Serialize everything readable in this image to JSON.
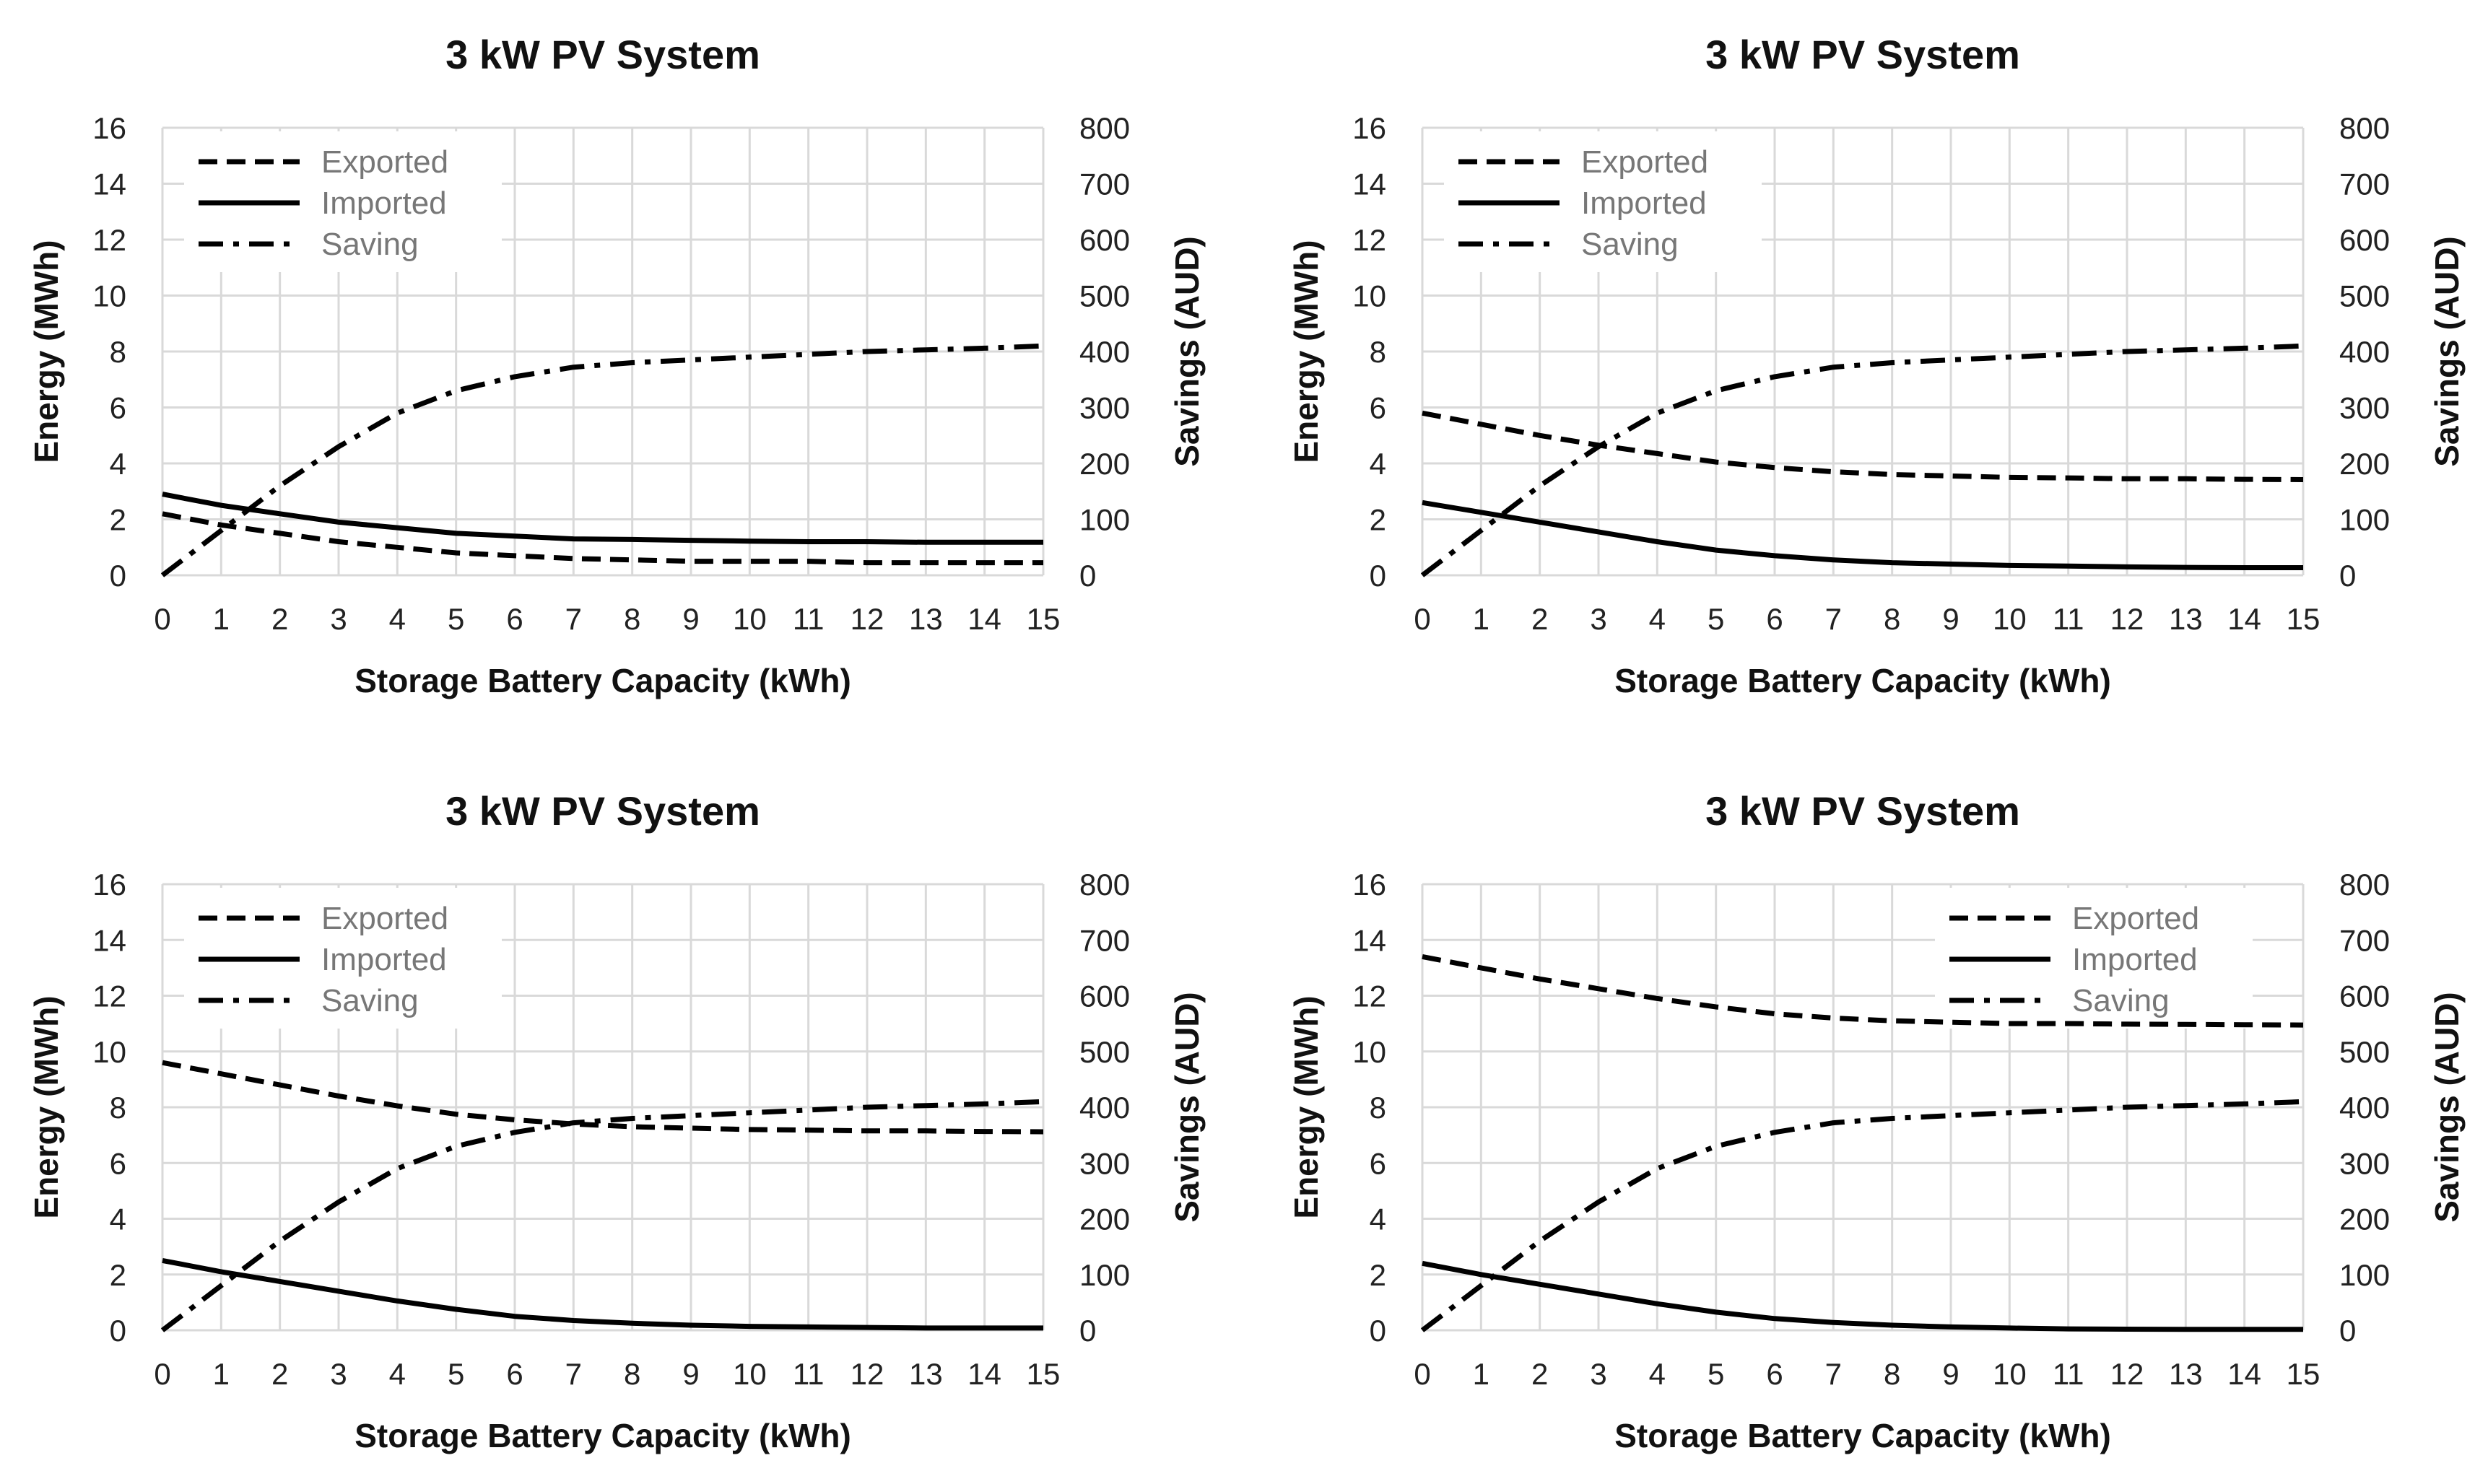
{
  "figure": {
    "description_free": true
  },
  "chart_data": [
    {
      "type": "line",
      "title": "3 kW PV System",
      "xlabel": "Storage Battery Capacity (kWh)",
      "ylabel": "Energy (MWh)",
      "y2label": "Savings (AUD)",
      "xlim": [
        0,
        15
      ],
      "ylim": [
        0,
        16
      ],
      "y2lim": [
        0,
        800
      ],
      "x_ticks": [
        "0",
        "1",
        "2",
        "3",
        "4",
        "5",
        "6",
        "7",
        "8",
        "9",
        "10",
        "11",
        "12",
        "13",
        "14",
        "15"
      ],
      "y_ticks": [
        "0",
        "2",
        "4",
        "6",
        "8",
        "10",
        "12",
        "14",
        "16"
      ],
      "y2_ticks": [
        "0",
        "100",
        "200",
        "300",
        "400",
        "500",
        "600",
        "700",
        "800"
      ],
      "grid": true,
      "legend_position": "top-left",
      "x": [
        0,
        1,
        2,
        3,
        4,
        5,
        6,
        7,
        8,
        9,
        10,
        11,
        12,
        13,
        14,
        15
      ],
      "series": [
        {
          "name": "Exported",
          "axis": "left",
          "style": "dashed",
          "values": [
            2.2,
            1.8,
            1.5,
            1.2,
            1.0,
            0.8,
            0.7,
            0.6,
            0.55,
            0.5,
            0.5,
            0.5,
            0.45,
            0.45,
            0.45,
            0.45
          ]
        },
        {
          "name": "Imported",
          "axis": "left",
          "style": "solid",
          "values": [
            2.9,
            2.5,
            2.2,
            1.9,
            1.7,
            1.5,
            1.4,
            1.3,
            1.28,
            1.25,
            1.22,
            1.2,
            1.2,
            1.18,
            1.18,
            1.18
          ]
        },
        {
          "name": "Saving",
          "axis": "right",
          "style": "dashdot",
          "values": [
            0,
            80,
            160,
            230,
            290,
            330,
            355,
            372,
            380,
            385,
            390,
            395,
            400,
            403,
            406,
            410
          ]
        }
      ]
    },
    {
      "type": "line",
      "title": "3 kW PV System",
      "xlabel": "Storage Battery Capacity (kWh)",
      "ylabel": "Energy (MWh)",
      "y2label": "Savings (AUD)",
      "xlim": [
        0,
        15
      ],
      "ylim": [
        0,
        16
      ],
      "y2lim": [
        0,
        800
      ],
      "x_ticks": [
        "0",
        "1",
        "2",
        "3",
        "4",
        "5",
        "6",
        "7",
        "8",
        "9",
        "10",
        "11",
        "12",
        "13",
        "14",
        "15"
      ],
      "y_ticks": [
        "0",
        "2",
        "4",
        "6",
        "8",
        "10",
        "12",
        "14",
        "16"
      ],
      "y2_ticks": [
        "0",
        "100",
        "200",
        "300",
        "400",
        "500",
        "600",
        "700",
        "800"
      ],
      "grid": true,
      "legend_position": "top-left",
      "x": [
        0,
        1,
        2,
        3,
        4,
        5,
        6,
        7,
        8,
        9,
        10,
        11,
        12,
        13,
        14,
        15
      ],
      "series": [
        {
          "name": "Exported",
          "axis": "left",
          "style": "dashed",
          "values": [
            5.8,
            5.4,
            5.0,
            4.65,
            4.35,
            4.05,
            3.85,
            3.7,
            3.6,
            3.55,
            3.5,
            3.48,
            3.45,
            3.45,
            3.43,
            3.42
          ]
        },
        {
          "name": "Imported",
          "axis": "left",
          "style": "solid",
          "values": [
            2.6,
            2.25,
            1.9,
            1.55,
            1.2,
            0.9,
            0.7,
            0.55,
            0.45,
            0.4,
            0.35,
            0.33,
            0.3,
            0.28,
            0.27,
            0.27
          ]
        },
        {
          "name": "Saving",
          "axis": "right",
          "style": "dashdot",
          "values": [
            0,
            80,
            160,
            230,
            290,
            330,
            355,
            372,
            380,
            385,
            390,
            395,
            400,
            403,
            406,
            410
          ]
        }
      ]
    },
    {
      "type": "line",
      "title": "3 kW PV System",
      "xlabel": "Storage Battery Capacity (kWh)",
      "ylabel": "Energy (MWh)",
      "y2label": "Savings (AUD)",
      "xlim": [
        0,
        15
      ],
      "ylim": [
        0,
        16
      ],
      "y2lim": [
        0,
        800
      ],
      "x_ticks": [
        "0",
        "1",
        "2",
        "3",
        "4",
        "5",
        "6",
        "7",
        "8",
        "9",
        "10",
        "11",
        "12",
        "13",
        "14",
        "15"
      ],
      "y_ticks": [
        "0",
        "2",
        "4",
        "6",
        "8",
        "10",
        "12",
        "14",
        "16"
      ],
      "y2_ticks": [
        "0",
        "100",
        "200",
        "300",
        "400",
        "500",
        "600",
        "700",
        "800"
      ],
      "grid": true,
      "legend_position": "top-left",
      "x": [
        0,
        1,
        2,
        3,
        4,
        5,
        6,
        7,
        8,
        9,
        10,
        11,
        12,
        13,
        14,
        15
      ],
      "series": [
        {
          "name": "Exported",
          "axis": "left",
          "style": "dashed",
          "values": [
            9.6,
            9.2,
            8.8,
            8.4,
            8.05,
            7.75,
            7.55,
            7.4,
            7.3,
            7.25,
            7.2,
            7.18,
            7.15,
            7.15,
            7.13,
            7.12
          ]
        },
        {
          "name": "Imported",
          "axis": "left",
          "style": "solid",
          "values": [
            2.5,
            2.1,
            1.75,
            1.4,
            1.05,
            0.75,
            0.5,
            0.35,
            0.25,
            0.18,
            0.14,
            0.12,
            0.1,
            0.08,
            0.08,
            0.08
          ]
        },
        {
          "name": "Saving",
          "axis": "right",
          "style": "dashdot",
          "values": [
            0,
            80,
            160,
            230,
            290,
            330,
            355,
            372,
            380,
            385,
            390,
            395,
            400,
            403,
            406,
            410
          ]
        }
      ]
    },
    {
      "type": "line",
      "title": "3 kW PV System",
      "xlabel": "Storage Battery Capacity (kWh)",
      "ylabel": "Energy (MWh)",
      "y2label": "Savings (AUD)",
      "xlim": [
        0,
        15
      ],
      "ylim": [
        0,
        16
      ],
      "y2lim": [
        0,
        800
      ],
      "x_ticks": [
        "0",
        "1",
        "2",
        "3",
        "4",
        "5",
        "6",
        "7",
        "8",
        "9",
        "10",
        "11",
        "12",
        "13",
        "14",
        "15"
      ],
      "y_ticks": [
        "0",
        "2",
        "4",
        "6",
        "8",
        "10",
        "12",
        "14",
        "16"
      ],
      "y2_ticks": [
        "0",
        "100",
        "200",
        "300",
        "400",
        "500",
        "600",
        "700",
        "800"
      ],
      "grid": true,
      "legend_position": "top-right",
      "x": [
        0,
        1,
        2,
        3,
        4,
        5,
        6,
        7,
        8,
        9,
        10,
        11,
        12,
        13,
        14,
        15
      ],
      "series": [
        {
          "name": "Exported",
          "axis": "left",
          "style": "dashed",
          "values": [
            13.4,
            13.0,
            12.6,
            12.25,
            11.9,
            11.6,
            11.35,
            11.2,
            11.1,
            11.05,
            11.0,
            11.0,
            10.98,
            10.97,
            10.96,
            10.95
          ]
        },
        {
          "name": "Imported",
          "axis": "left",
          "style": "solid",
          "values": [
            2.4,
            2.0,
            1.65,
            1.3,
            0.95,
            0.65,
            0.42,
            0.28,
            0.18,
            0.12,
            0.08,
            0.05,
            0.04,
            0.03,
            0.03,
            0.03
          ]
        },
        {
          "name": "Saving",
          "axis": "right",
          "style": "dashdot",
          "values": [
            0,
            80,
            160,
            230,
            290,
            330,
            355,
            372,
            380,
            385,
            390,
            395,
            400,
            403,
            406,
            410
          ]
        }
      ]
    }
  ]
}
